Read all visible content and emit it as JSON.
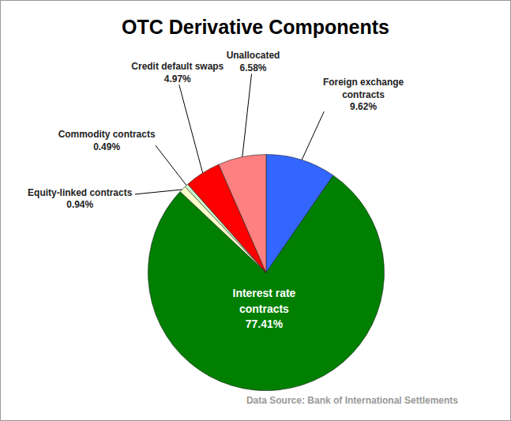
{
  "chart_data": {
    "type": "pie",
    "title": "OTC Derivative Components",
    "categories": [
      "Foreign exchange contracts",
      "Interest rate contracts",
      "Equity-linked contracts",
      "Commodity contracts",
      "Credit default swaps",
      "Unallocated"
    ],
    "values": [
      9.62,
      77.41,
      0.94,
      0.49,
      4.97,
      6.58
    ],
    "value_labels": [
      "9.62%",
      "77.41%",
      "0.94%",
      "0.49%",
      "4.97%",
      "6.58%"
    ],
    "colors": [
      "#3366ff",
      "#007f00",
      "#ffffcc",
      "#ccffcc",
      "#ff0000",
      "#ff8080"
    ],
    "data_labels": true,
    "caption": "Data Source: Bank of International Settlements"
  }
}
